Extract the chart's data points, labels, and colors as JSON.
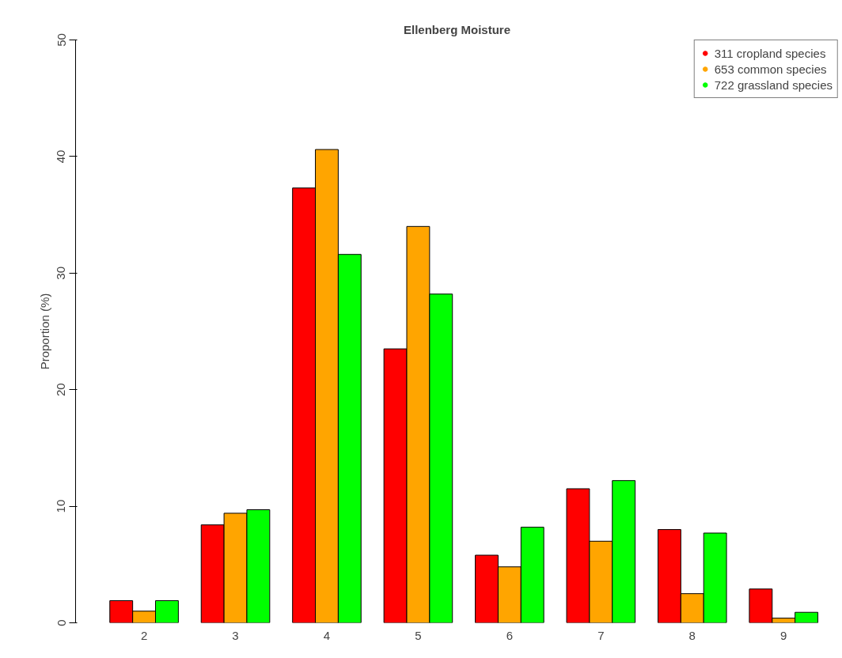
{
  "chart_data": {
    "type": "bar",
    "title": "Ellenberg Moisture",
    "ylabel": "Proportion (%)",
    "categories": [
      "2",
      "3",
      "4",
      "5",
      "6",
      "7",
      "8",
      "9"
    ],
    "series": [
      {
        "name": "311 cropland species",
        "color": "#ff0000",
        "values": [
          1.9,
          8.4,
          37.3,
          23.5,
          5.8,
          11.5,
          8.0,
          2.9
        ]
      },
      {
        "name": "653 common species",
        "color": "#ffa500",
        "values": [
          1.0,
          9.4,
          40.6,
          34.0,
          4.8,
          7.0,
          2.5,
          0.4
        ]
      },
      {
        "name": "722 grassland species",
        "color": "#00ff00",
        "values": [
          1.9,
          9.7,
          31.6,
          28.2,
          8.2,
          12.2,
          7.7,
          0.9
        ]
      }
    ],
    "ylim": [
      0,
      50
    ],
    "yticks": [
      0,
      10,
      20,
      30,
      40,
      50
    ],
    "grid": false,
    "legend": "top right",
    "marker": "circle"
  }
}
